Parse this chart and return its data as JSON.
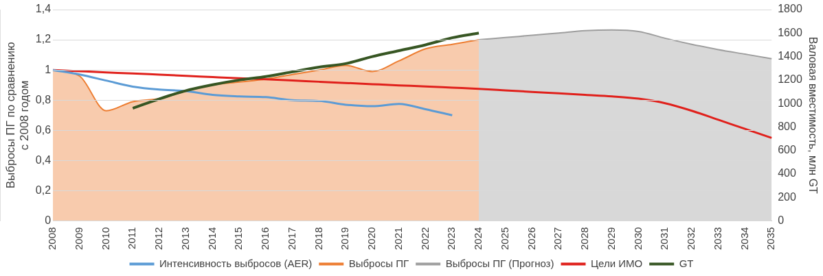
{
  "chart_data": {
    "type": "line",
    "ylabel": "Выбросы ПГ по сравнению с 2008 годом",
    "y2label": "Валовая вместимость, млн GT",
    "categories": [
      "2008",
      "2009",
      "2010",
      "2011",
      "2012",
      "2013",
      "2014",
      "2015",
      "2016",
      "2017",
      "2018",
      "2019",
      "2020",
      "2021",
      "2022",
      "2023",
      "2024",
      "2025",
      "2026",
      "2027",
      "2028",
      "2029",
      "2030",
      "2031",
      "2032",
      "2033",
      "2034",
      "2035"
    ],
    "ylim": [
      0,
      1.4
    ],
    "yticks": [
      0,
      {
        "value": 0.2,
        "label": "0,2"
      },
      {
        "value": 0.4,
        "label": "0,4"
      },
      {
        "value": 0.6,
        "label": "0,6"
      },
      {
        "value": 0.8,
        "label": "0,8"
      },
      1,
      {
        "value": 1.2,
        "label": "1,2"
      },
      {
        "value": 1.4,
        "label": "1,4"
      }
    ],
    "y2lim": [
      0,
      1800
    ],
    "y2ticks": [
      0,
      200,
      400,
      600,
      800,
      1000,
      1200,
      1400,
      1600,
      1800
    ],
    "grid": "y",
    "legend": "bottom",
    "marker": "none",
    "series": [
      {
        "name": "Интенсивность выбросов (AER)",
        "color": "#5b9bd5",
        "values": [
          1.0,
          0.97,
          0.93,
          0.89,
          0.87,
          0.86,
          0.835,
          0.825,
          0.82,
          0.8,
          0.795,
          0.77,
          0.76,
          0.775,
          0.74,
          0.7,
          null,
          null,
          null,
          null,
          null,
          null,
          null,
          null,
          null,
          null,
          null,
          null
        ]
      },
      {
        "name": "Выбросы ПГ",
        "type": "area",
        "color": "#ed7d31",
        "values": [
          1.0,
          0.96,
          0.73,
          0.79,
          0.81,
          0.86,
          0.9,
          0.92,
          0.94,
          0.97,
          1.0,
          1.03,
          0.99,
          1.06,
          1.14,
          1.17,
          1.2,
          null,
          null,
          null,
          null,
          null,
          null,
          null,
          null,
          null,
          null,
          null
        ]
      },
      {
        "name": "Выбросы ПГ (Прогноз)",
        "type": "area",
        "color": "#9e9e9e",
        "values": [
          null,
          null,
          null,
          null,
          null,
          null,
          null,
          null,
          null,
          null,
          null,
          null,
          null,
          null,
          null,
          null,
          1.2,
          1.215,
          1.23,
          1.245,
          1.26,
          1.265,
          1.255,
          1.21,
          1.17,
          1.135,
          1.105,
          1.075
        ]
      },
      {
        "name": "Цели ИМО",
        "color": "#e0201b",
        "values": [
          1.0,
          0.992,
          0.984,
          0.977,
          0.969,
          0.961,
          0.953,
          0.945,
          0.938,
          0.93,
          0.922,
          0.914,
          0.906,
          0.898,
          0.891,
          0.883,
          0.875,
          0.865,
          0.855,
          0.845,
          0.835,
          0.825,
          0.81,
          0.78,
          0.73,
          0.67,
          0.61,
          0.55
        ]
      },
      {
        "name": "GT",
        "color": "#375623",
        "axis": "y2",
        "values": [
          null,
          null,
          null,
          960,
          1040,
          1110,
          1160,
          1200,
          1230,
          1270,
          1310,
          1340,
          1400,
          1450,
          1500,
          1560,
          1600,
          null,
          null,
          null,
          null,
          null,
          null,
          null,
          null,
          null,
          null,
          null
        ]
      }
    ]
  }
}
